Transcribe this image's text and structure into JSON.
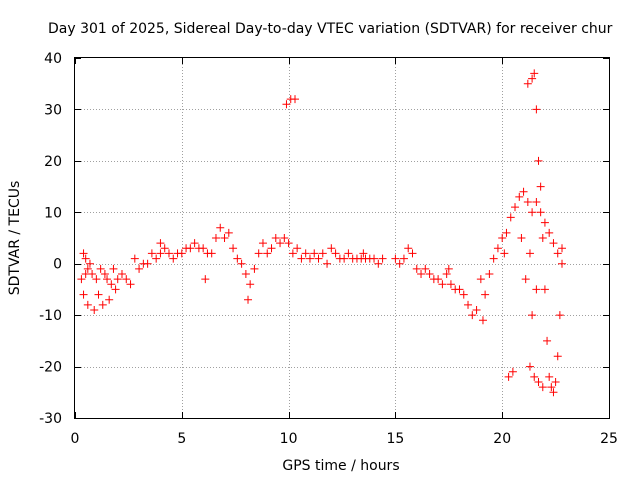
{
  "chart_data": {
    "type": "scatter",
    "title": "Day 301 of 2025, Sidereal Day-to-day VTEC variation (SDTVAR) for receiver chur",
    "xlabel": "GPS time / hours",
    "ylabel": "SDTVAR / TECUs",
    "xlim": [
      0,
      25
    ],
    "ylim": [
      -30,
      40
    ],
    "xticks": [
      0,
      5,
      10,
      15,
      20,
      25
    ],
    "yticks": [
      -30,
      -20,
      -10,
      0,
      10,
      20,
      30,
      40
    ],
    "xtick_labels": [
      "0",
      "5",
      "10",
      "15",
      "20",
      "25"
    ],
    "ytick_labels": [
      "-30",
      "-20",
      "-10",
      "0",
      "10",
      "20",
      "30",
      "40"
    ],
    "grid": true,
    "marker": "+",
    "color": "#ff0000",
    "series": [
      {
        "name": "scatter-main",
        "points": [
          [
            0.3,
            -3
          ],
          [
            0.4,
            2
          ],
          [
            0.4,
            -6
          ],
          [
            0.5,
            -2
          ],
          [
            0.5,
            1
          ],
          [
            0.6,
            -8
          ],
          [
            0.6,
            -1
          ],
          [
            0.7,
            0
          ],
          [
            0.8,
            -2
          ],
          [
            0.9,
            -9
          ],
          [
            1.0,
            -3
          ],
          [
            1.1,
            -6
          ],
          [
            1.2,
            -1
          ],
          [
            1.3,
            -8
          ],
          [
            1.4,
            -2
          ],
          [
            1.5,
            -3
          ],
          [
            1.6,
            -7
          ],
          [
            1.7,
            -4
          ],
          [
            1.8,
            -1
          ],
          [
            1.9,
            -5
          ],
          [
            2.0,
            -3
          ],
          [
            2.2,
            -2
          ],
          [
            2.4,
            -3
          ],
          [
            2.6,
            -4
          ],
          [
            2.8,
            1
          ],
          [
            3.0,
            -1
          ],
          [
            3.2,
            0
          ],
          [
            3.4,
            0
          ],
          [
            3.6,
            2
          ],
          [
            3.8,
            1
          ],
          [
            4.0,
            2
          ],
          [
            4.2,
            3
          ],
          [
            4.4,
            2
          ],
          [
            4.6,
            1
          ],
          [
            4.8,
            2
          ],
          [
            5.0,
            2
          ],
          [
            5.2,
            3
          ],
          [
            5.4,
            3
          ],
          [
            5.6,
            4
          ],
          [
            5.8,
            3
          ],
          [
            6.0,
            3
          ],
          [
            6.2,
            2
          ],
          [
            6.4,
            2
          ],
          [
            6.6,
            5
          ],
          [
            6.8,
            7
          ],
          [
            7.0,
            5
          ],
          [
            7.2,
            6
          ],
          [
            7.4,
            3
          ],
          [
            7.6,
            1
          ],
          [
            7.8,
            0
          ],
          [
            8.0,
            -2
          ],
          [
            8.2,
            -4
          ],
          [
            8.4,
            -1
          ],
          [
            8.6,
            2
          ],
          [
            8.8,
            4
          ],
          [
            9.0,
            2
          ],
          [
            9.2,
            3
          ],
          [
            9.4,
            5
          ],
          [
            9.6,
            4
          ],
          [
            9.8,
            5
          ],
          [
            10.0,
            4
          ],
          [
            10.2,
            2
          ],
          [
            10.4,
            3
          ],
          [
            10.6,
            1
          ],
          [
            10.8,
            2
          ],
          [
            11.0,
            1
          ],
          [
            11.2,
            2
          ],
          [
            11.4,
            1
          ],
          [
            11.6,
            2
          ],
          [
            11.8,
            0
          ],
          [
            12.0,
            3
          ],
          [
            12.2,
            2
          ],
          [
            12.4,
            1
          ],
          [
            12.6,
            1
          ],
          [
            12.8,
            2
          ],
          [
            13.0,
            1
          ],
          [
            13.2,
            1
          ],
          [
            13.4,
            1
          ],
          [
            13.6,
            1
          ],
          [
            13.8,
            1
          ],
          [
            14.0,
            1
          ],
          [
            14.2,
            0
          ],
          [
            14.4,
            1
          ],
          [
            15.0,
            1
          ],
          [
            15.2,
            0
          ],
          [
            15.4,
            1
          ],
          [
            15.6,
            3
          ],
          [
            15.8,
            2
          ],
          [
            16.0,
            -1
          ],
          [
            16.2,
            -2
          ],
          [
            16.4,
            -1
          ],
          [
            16.6,
            -2
          ],
          [
            16.8,
            -3
          ],
          [
            17.0,
            -3
          ],
          [
            17.2,
            -4
          ],
          [
            17.4,
            -2
          ],
          [
            17.6,
            -4
          ],
          [
            17.8,
            -5
          ],
          [
            18.0,
            -5
          ],
          [
            18.2,
            -6
          ],
          [
            18.4,
            -8
          ],
          [
            18.6,
            -10
          ],
          [
            18.8,
            -9
          ],
          [
            19.0,
            -3
          ],
          [
            19.2,
            -6
          ],
          [
            19.4,
            -2
          ],
          [
            19.6,
            1
          ],
          [
            19.8,
            3
          ],
          [
            20.0,
            5
          ],
          [
            20.2,
            6
          ],
          [
            20.4,
            9
          ],
          [
            20.6,
            11
          ],
          [
            20.8,
            13
          ],
          [
            21.0,
            14
          ],
          [
            21.2,
            12
          ],
          [
            21.4,
            10
          ],
          [
            21.6,
            12
          ],
          [
            21.8,
            10
          ],
          [
            22.0,
            8
          ],
          [
            22.2,
            6
          ],
          [
            22.4,
            4
          ],
          [
            22.6,
            2
          ],
          [
            22.8,
            3
          ],
          [
            21.2,
            35
          ],
          [
            21.4,
            36
          ],
          [
            21.5,
            37
          ],
          [
            21.6,
            30
          ],
          [
            21.7,
            20
          ],
          [
            21.8,
            15
          ],
          [
            21.9,
            5
          ],
          [
            22.0,
            -5
          ],
          [
            22.1,
            -15
          ],
          [
            22.2,
            -22
          ],
          [
            22.3,
            -24
          ],
          [
            22.4,
            -25
          ],
          [
            22.5,
            -23
          ],
          [
            22.6,
            -18
          ],
          [
            22.7,
            -10
          ],
          [
            22.8,
            0
          ],
          [
            21.3,
            -20
          ],
          [
            21.5,
            -22
          ],
          [
            21.7,
            -23
          ],
          [
            21.9,
            -24
          ],
          [
            20.3,
            -22
          ],
          [
            20.5,
            -21
          ],
          [
            21.4,
            -10
          ],
          [
            21.6,
            -5
          ],
          [
            21.3,
            2
          ],
          [
            21.1,
            -3
          ],
          [
            20.9,
            5
          ],
          [
            9.9,
            31
          ],
          [
            10.1,
            32
          ],
          [
            10.3,
            32
          ],
          [
            6.1,
            -3
          ],
          [
            8.1,
            -7
          ],
          [
            4.0,
            4
          ],
          [
            13.5,
            2
          ],
          [
            17.5,
            -1
          ],
          [
            19.1,
            -11
          ],
          [
            20.1,
            2
          ]
        ]
      }
    ]
  }
}
